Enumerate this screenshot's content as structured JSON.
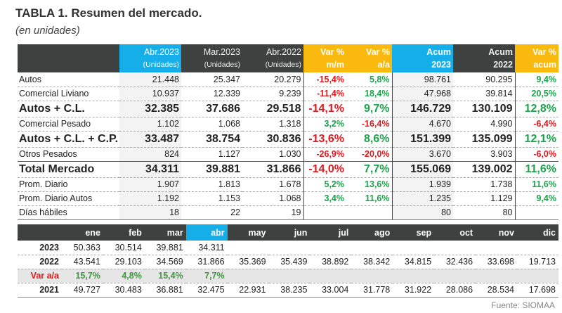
{
  "title": "TABLA 1. Resumen del mercado.",
  "subtitle": "(en unidades)",
  "main": {
    "headers": [
      {
        "l1": "Abr.2023",
        "l2": "(Unidades)"
      },
      {
        "l1": "Mar.2023",
        "l2": "(Unidades)"
      },
      {
        "l1": "Abr.2022",
        "l2": "(Unidades)"
      },
      {
        "l1": "Var %",
        "l2": "m/m"
      },
      {
        "l1": "Var %",
        "l2": "a/a"
      },
      {
        "l1": "Acum",
        "l2": "2023"
      },
      {
        "l1": "Acum",
        "l2": "2022"
      },
      {
        "l1": "Var %",
        "l2": "acum"
      }
    ],
    "rows": [
      {
        "label": "Autos",
        "v": [
          "21.448",
          "25.347",
          "20.279",
          "-15,4%",
          "5,8%",
          "98.761",
          "90.295",
          "9,4%"
        ]
      },
      {
        "label": "Comercial Liviano",
        "v": [
          "10.937",
          "12.339",
          "9.239",
          "-11,4%",
          "18,4%",
          "47.968",
          "39.814",
          "20,5%"
        ]
      },
      {
        "label": "Autos + C.L.",
        "v": [
          "32.385",
          "37.686",
          "29.518",
          "-14,1%",
          "9,7%",
          "146.729",
          "130.109",
          "12,8%"
        ]
      },
      {
        "label": "Comercial Pesado",
        "v": [
          "1.102",
          "1.068",
          "1.318",
          "3,2%",
          "-16,4%",
          "4.670",
          "4.990",
          "-6,4%"
        ]
      },
      {
        "label": "Autos + C.L. + C.P.",
        "v": [
          "33.487",
          "38.754",
          "30.836",
          "-13,6%",
          "8,6%",
          "151.399",
          "135.099",
          "12,1%"
        ]
      },
      {
        "label": "Otros Pesados",
        "v": [
          "824",
          "1.127",
          "1.030",
          "-26,9%",
          "-20,0%",
          "3.670",
          "3.903",
          "-6,0%"
        ]
      },
      {
        "label": "Total Mercado",
        "v": [
          "34.311",
          "39.881",
          "31.866",
          "-14,0%",
          "7,7%",
          "155.069",
          "139.002",
          "11,6%"
        ]
      },
      {
        "label": "Prom. Diario",
        "v": [
          "1.907",
          "1.813",
          "1.678",
          "5,2%",
          "13,6%",
          "1.939",
          "1.738",
          "11,6%"
        ]
      },
      {
        "label": "Prom. Diario Autos",
        "v": [
          "1.192",
          "1.153",
          "1.068",
          "3,4%",
          "11,6%",
          "1.235",
          "1.129",
          "9,4%"
        ]
      },
      {
        "label": "Días hábiles",
        "v": [
          "18",
          "22",
          "19",
          "",
          "",
          "80",
          "80",
          ""
        ]
      }
    ]
  },
  "months": {
    "headers": [
      "ene",
      "feb",
      "mar",
      "abr",
      "may",
      "jun",
      "jul",
      "ago",
      "sep",
      "oct",
      "nov",
      "dic"
    ],
    "rows": [
      {
        "label": "2023",
        "v": [
          "50.363",
          "30.514",
          "39.881",
          "34.311",
          "",
          "",
          "",
          "",
          "",
          "",
          "",
          ""
        ]
      },
      {
        "label": "2022",
        "v": [
          "43.541",
          "29.103",
          "34.569",
          "31.866",
          "35.369",
          "35.439",
          "38.892",
          "38.342",
          "34.815",
          "32.436",
          "33.698",
          "19.713"
        ]
      },
      {
        "label": "Var a/a",
        "v": [
          "15,7%",
          "4,8%",
          "15,4%",
          "7,7%",
          "",
          "",
          "",
          "",
          "",
          "",
          "",
          ""
        ]
      },
      {
        "label": "2021",
        "v": [
          "49.727",
          "30.483",
          "36.881",
          "32.475",
          "22.931",
          "38.235",
          "33.004",
          "31.778",
          "31.922",
          "28.086",
          "28.534",
          "17.698"
        ]
      }
    ]
  },
  "source": "Fuente: SIOMAA",
  "colors": {
    "header_dark": "#3d4240",
    "accent_blue": "#16aee8",
    "accent_yellow": "#f9b90f",
    "negative": "#e0191e",
    "positive": "#1aa34a"
  }
}
